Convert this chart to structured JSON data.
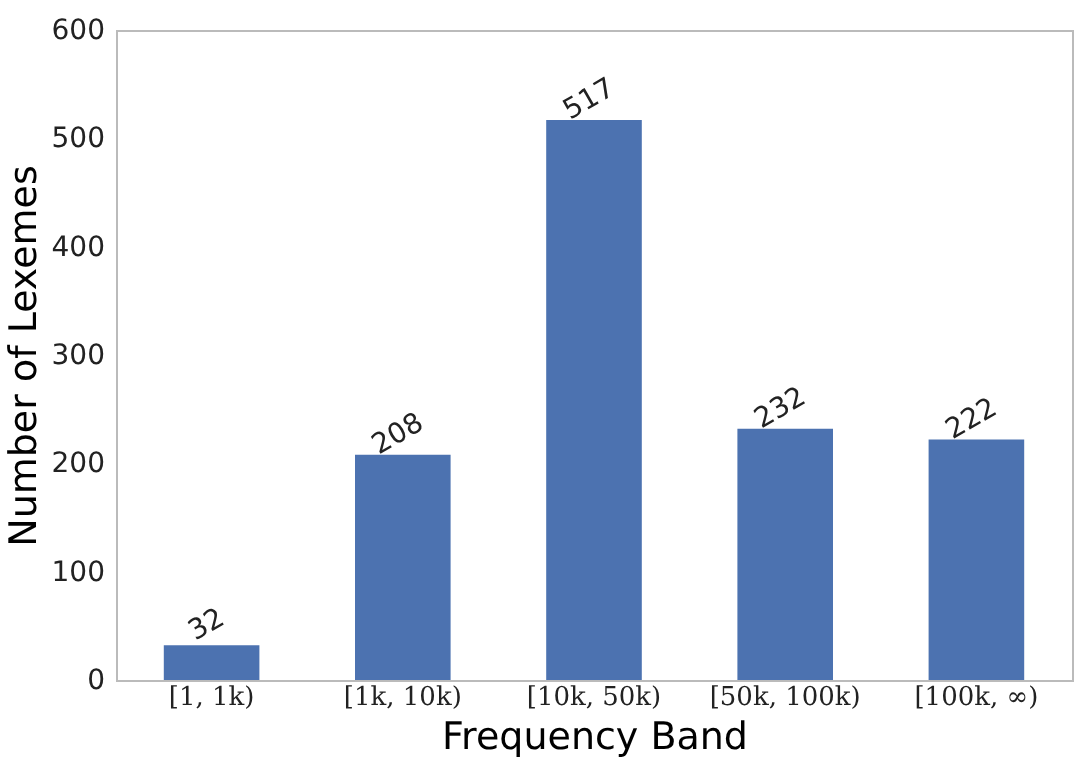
{
  "chart_data": {
    "type": "bar",
    "xlabel": "Frequency Band",
    "ylabel": "Number of Lexemes",
    "categories": [
      "[1, 1k)",
      "[1k, 10k)",
      "[10k, 50k)",
      "[50k, 100k)",
      "[100k, ∞)"
    ],
    "values": [
      32,
      208,
      517,
      232,
      222
    ],
    "color": "#4c72b0",
    "ylim": [
      0,
      600
    ],
    "yticks": [
      0,
      100,
      200,
      300,
      400,
      500,
      600
    ],
    "grid": false,
    "data_labels": true
  }
}
